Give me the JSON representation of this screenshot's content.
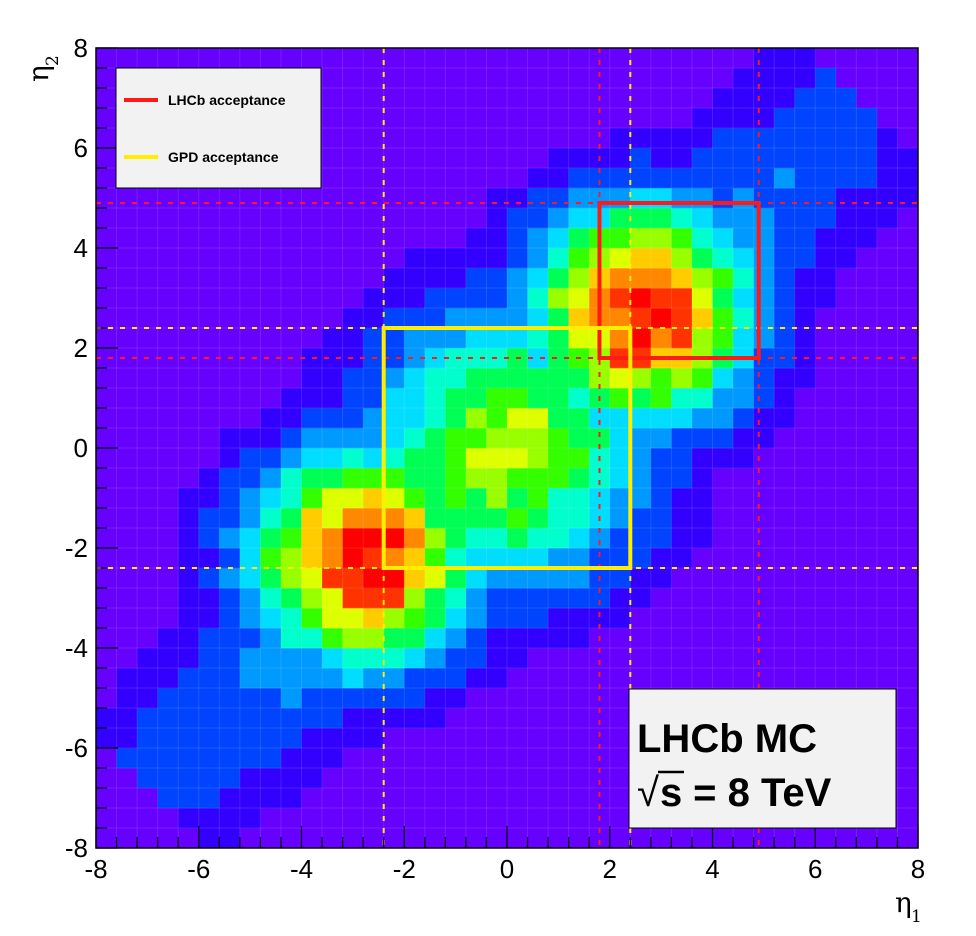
{
  "chart_data": {
    "type": "heatmap",
    "title": "",
    "xlabel": "η",
    "xlabel_sub": "1",
    "ylabel": "η",
    "ylabel_sub": "2",
    "xlim": [
      -8,
      8
    ],
    "ylim": [
      -8,
      8
    ],
    "xticks": [
      -8,
      -6,
      -4,
      -2,
      0,
      2,
      4,
      6,
      8
    ],
    "yticks": [
      -8,
      -6,
      -4,
      -2,
      0,
      2,
      4,
      6,
      8
    ],
    "tick_labels_x": [
      "-8",
      "-6",
      "-4",
      "-2",
      "0",
      "2",
      "4",
      "6",
      "8"
    ],
    "tick_labels_y": [
      "-8",
      "-6",
      "-4",
      "-2",
      "0",
      "2",
      "4",
      "6",
      "8"
    ],
    "bins": 40,
    "background_color": "#6600ff",
    "colormap": [
      "#6600ff",
      "#3300ff",
      "#0044ff",
      "#0099ff",
      "#00ddff",
      "#00ffcc",
      "#00ff55",
      "#33ff00",
      "#99ff00",
      "#ddff00",
      "#ffcc00",
      "#ff8800",
      "#ff3300",
      "#ff0000"
    ],
    "blobs": [
      {
        "cx": -2.8,
        "cy": -2.2,
        "sx": 1.35,
        "sy": 1.35,
        "amp": 1.0
      },
      {
        "cx": 2.6,
        "cy": 2.7,
        "sx": 1.35,
        "sy": 1.35,
        "amp": 1.0
      },
      {
        "cx": 0.0,
        "cy": 0.0,
        "sx": 1.7,
        "sy": 1.7,
        "amp": 0.62
      }
    ],
    "diagonal_band": {
      "sigma": 2.2,
      "extent": 7.0
    },
    "legend": {
      "placement": "top-left",
      "entries": [
        {
          "label": "LHCb acceptance",
          "color": "#ff1a1a"
        },
        {
          "label": "GPD acceptance",
          "color": "#ffee00"
        }
      ]
    },
    "acceptance_boxes": [
      {
        "name": "LHCb acceptance",
        "color": "#ff1a1a",
        "x": [
          1.8,
          4.9
        ],
        "y": [
          1.8,
          4.9
        ]
      },
      {
        "name": "GPD acceptance",
        "color": "#ffee00",
        "x": [
          -2.4,
          2.4
        ],
        "y": [
          -2.4,
          2.4
        ]
      }
    ],
    "annotation": {
      "line1": "LHCb MC",
      "sqrt_symbol": "√",
      "line2_var": "s",
      "line2_rest": " = 8 TeV",
      "placement": "bottom-right"
    }
  }
}
